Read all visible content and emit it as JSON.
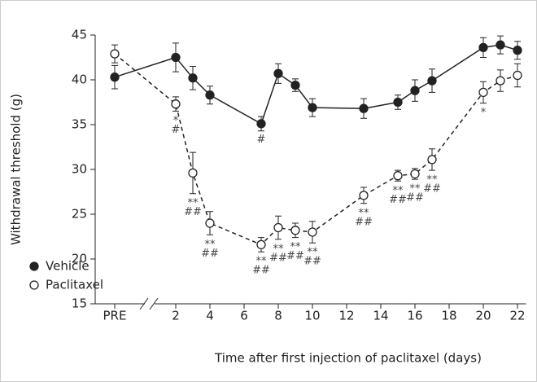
{
  "chart_data": {
    "type": "line",
    "x_label": "Time after first injection of paclitaxel (days)",
    "y_label": "Withdrawal threshold (g)",
    "x": [
      "PRE",
      2,
      3,
      4,
      7,
      8,
      9,
      10,
      13,
      15,
      16,
      17,
      20,
      21,
      22
    ],
    "xlim": [
      1,
      22.5
    ],
    "xticks": [
      "PRE",
      2,
      4,
      6,
      8,
      10,
      12,
      14,
      16,
      18,
      20,
      22
    ],
    "ylim": [
      15,
      45
    ],
    "yticks": [
      15,
      20,
      25,
      30,
      35,
      40,
      45
    ],
    "legend": "lower left",
    "series": [
      {
        "name": "Vehicle",
        "color": "#222222",
        "marker": "filled",
        "dash": false,
        "values": [
          40.3,
          42.5,
          40.2,
          38.3,
          35.1,
          40.7,
          39.4,
          36.9,
          36.8,
          37.5,
          38.8,
          39.9,
          43.6,
          43.9,
          43.3
        ],
        "errors": [
          1.3,
          1.6,
          1.3,
          1.0,
          0.8,
          1.1,
          0.7,
          1.0,
          1.1,
          0.8,
          1.2,
          1.3,
          1.1,
          1.0,
          1.0
        ],
        "stars": [
          null,
          null,
          null,
          null,
          null,
          null,
          null,
          null,
          null,
          null,
          null,
          null,
          null,
          null,
          null
        ],
        "hashes": [
          null,
          null,
          null,
          null,
          "#",
          null,
          null,
          null,
          null,
          null,
          null,
          null,
          null,
          null,
          null
        ]
      },
      {
        "name": "Paclitaxel",
        "color": "#222222",
        "marker": "open",
        "dash": true,
        "values": [
          42.9,
          37.3,
          29.6,
          24.0,
          21.6,
          23.5,
          23.2,
          23.0,
          27.1,
          29.3,
          29.5,
          31.1,
          38.6,
          39.9,
          40.5
        ],
        "errors": [
          1.0,
          0.8,
          2.3,
          1.3,
          0.8,
          1.3,
          0.8,
          1.2,
          0.9,
          0.6,
          0.6,
          1.2,
          1.2,
          1.2,
          1.3
        ],
        "stars": [
          null,
          "*",
          "**",
          "**",
          "**",
          "**",
          "**",
          "**",
          "**",
          "**",
          "**",
          "**",
          "*",
          null,
          null
        ],
        "hashes": [
          null,
          "#",
          "##",
          "##",
          "##",
          "##",
          "##",
          "##",
          "##",
          "##",
          "##",
          "##",
          null,
          null,
          null
        ]
      }
    ]
  }
}
